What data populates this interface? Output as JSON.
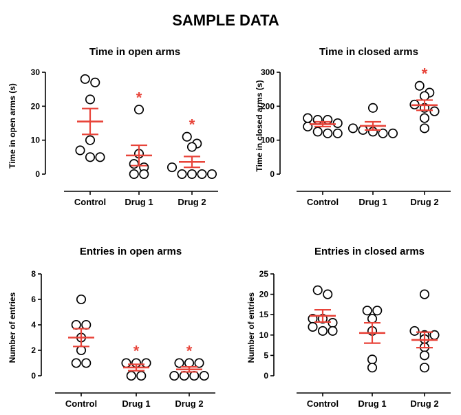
{
  "figure": {
    "title": "SAMPLE DATA"
  },
  "colors": {
    "axis": "#000000",
    "point_stroke": "#000000",
    "summary": "#e8443a",
    "significance": "#e8443a"
  },
  "chart_data": [
    {
      "type": "scatter",
      "title": "Time in open arms",
      "ylabel": "Time in open arms (s)",
      "categories": [
        "Control",
        "Drug 1",
        "Drug 2"
      ],
      "ylim": [
        0,
        30
      ],
      "yticks": [
        0,
        10,
        20,
        30
      ],
      "points": [
        [
          28,
          27,
          22,
          10,
          7,
          5,
          5
        ],
        [
          19,
          6,
          3,
          2,
          0,
          0
        ],
        [
          11,
          9,
          8,
          2,
          0,
          0,
          0,
          0
        ]
      ],
      "mean": [
        15.5,
        5.5,
        3.6
      ],
      "sem": [
        3.8,
        3.0,
        1.6
      ],
      "significance": [
        "",
        "*",
        "*"
      ]
    },
    {
      "type": "scatter",
      "title": "Time in closed arms",
      "ylabel": "Time in closed arms (s)",
      "categories": [
        "Control",
        "Drug 1",
        "Drug 2"
      ],
      "ylim": [
        0,
        300
      ],
      "yticks": [
        0,
        100,
        200,
        300
      ],
      "points": [
        [
          165,
          160,
          160,
          150,
          140,
          125,
          120,
          120
        ],
        [
          195,
          135,
          130,
          125,
          120,
          120
        ],
        [
          260,
          240,
          230,
          205,
          195,
          185,
          165,
          135
        ]
      ],
      "mean": [
        147,
        142,
        203
      ],
      "sem": [
        7,
        12,
        15
      ],
      "significance": [
        "",
        "",
        "*"
      ]
    },
    {
      "type": "scatter",
      "title": "Entries in open arms",
      "ylabel": "Number of entries",
      "categories": [
        "Control",
        "Drug 1",
        "Drug 2"
      ],
      "ylim": [
        0,
        8
      ],
      "yticks": [
        0,
        2,
        4,
        6,
        8
      ],
      "points": [
        [
          6,
          4,
          4,
          3,
          2,
          1,
          1
        ],
        [
          1,
          1,
          1,
          0,
          0
        ],
        [
          1,
          1,
          1,
          0,
          0,
          0,
          0
        ]
      ],
      "mean": [
        3.0,
        0.65,
        0.5
      ],
      "sem": [
        0.7,
        0.25,
        0.2
      ],
      "significance": [
        "",
        "*",
        "*"
      ]
    },
    {
      "type": "scatter",
      "title": "Entries in closed arms",
      "ylabel": "Number of entries",
      "categories": [
        "Control",
        "Drug 1",
        "Drug 2"
      ],
      "ylim": [
        0,
        25
      ],
      "yticks": [
        0,
        5,
        10,
        15,
        20,
        25
      ],
      "points": [
        [
          21,
          20,
          14,
          14,
          13,
          12,
          11,
          11
        ],
        [
          16,
          16,
          14,
          11,
          4,
          2
        ],
        [
          20,
          11,
          10,
          10,
          9,
          7,
          5,
          2
        ]
      ],
      "mean": [
        14.7,
        10.5,
        8.8
      ],
      "sem": [
        1.5,
        2.5,
        1.9
      ],
      "significance": [
        "",
        "",
        ""
      ]
    }
  ]
}
